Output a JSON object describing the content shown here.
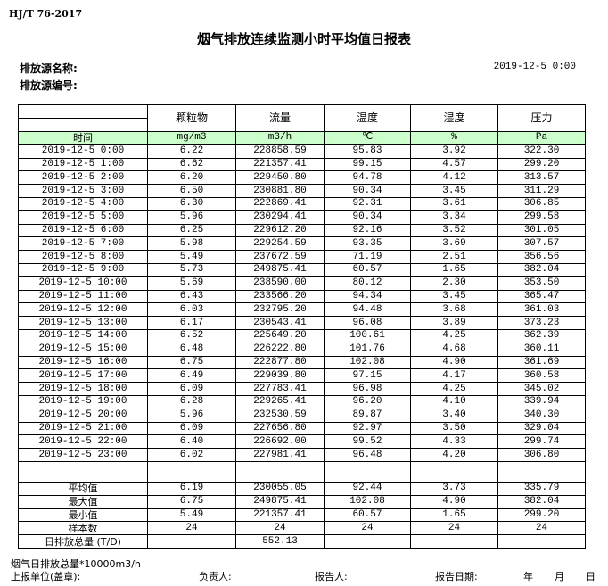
{
  "standard": "HJ/T  76-2017",
  "title": "烟气排放连续监测小时平均值日报表",
  "source_name_label": "排放源名称:",
  "source_id_label": "排放源编号:",
  "report_datetime": "2019-12-5 0:00",
  "columns": [
    "颗粒物",
    "流量",
    "温度",
    "湿度",
    "压力"
  ],
  "time_label": "时间",
  "units": [
    "mg/m3",
    "m3/h",
    "℃",
    "%",
    "Pa"
  ],
  "rows": [
    [
      "2019-12-5 0:00",
      "6.22",
      "228858.59",
      "95.83",
      "3.92",
      "322.30"
    ],
    [
      "2019-12-5 1:00",
      "6.62",
      "221357.41",
      "99.15",
      "4.57",
      "299.20"
    ],
    [
      "2019-12-5 2:00",
      "6.20",
      "229450.80",
      "94.78",
      "4.12",
      "313.57"
    ],
    [
      "2019-12-5 3:00",
      "6.50",
      "230881.80",
      "90.34",
      "3.45",
      "311.29"
    ],
    [
      "2019-12-5 4:00",
      "6.30",
      "222869.41",
      "92.31",
      "3.61",
      "306.85"
    ],
    [
      "2019-12-5 5:00",
      "5.96",
      "230294.41",
      "90.34",
      "3.34",
      "299.58"
    ],
    [
      "2019-12-5 6:00",
      "6.25",
      "229612.20",
      "92.16",
      "3.52",
      "301.05"
    ],
    [
      "2019-12-5 7:00",
      "5.98",
      "229254.59",
      "93.35",
      "3.69",
      "307.57"
    ],
    [
      "2019-12-5 8:00",
      "5.49",
      "237672.59",
      "71.19",
      "2.51",
      "356.56"
    ],
    [
      "2019-12-5 9:00",
      "5.73",
      "249875.41",
      "60.57",
      "1.65",
      "382.04"
    ],
    [
      "2019-12-5 10:00",
      "5.69",
      "238590.00",
      "80.12",
      "2.30",
      "353.50"
    ],
    [
      "2019-12-5 11:00",
      "6.43",
      "233566.20",
      "94.34",
      "3.45",
      "365.47"
    ],
    [
      "2019-12-5 12:00",
      "6.03",
      "232795.20",
      "94.48",
      "3.68",
      "361.03"
    ],
    [
      "2019-12-5 13:00",
      "6.17",
      "230543.41",
      "96.08",
      "3.89",
      "373.23"
    ],
    [
      "2019-12-5 14:00",
      "6.52",
      "225649.20",
      "100.61",
      "4.25",
      "362.39"
    ],
    [
      "2019-12-5 15:00",
      "6.48",
      "226222.80",
      "101.76",
      "4.68",
      "360.11"
    ],
    [
      "2019-12-5 16:00",
      "6.75",
      "222877.80",
      "102.08",
      "4.90",
      "361.69"
    ],
    [
      "2019-12-5 17:00",
      "6.49",
      "229039.80",
      "97.15",
      "4.17",
      "360.58"
    ],
    [
      "2019-12-5 18:00",
      "6.09",
      "227783.41",
      "96.98",
      "4.25",
      "345.02"
    ],
    [
      "2019-12-5 19:00",
      "6.28",
      "229265.41",
      "96.20",
      "4.10",
      "339.94"
    ],
    [
      "2019-12-5 20:00",
      "5.96",
      "232530.59",
      "89.87",
      "3.40",
      "340.30"
    ],
    [
      "2019-12-5 21:00",
      "6.09",
      "227656.80",
      "92.97",
      "3.50",
      "329.04"
    ],
    [
      "2019-12-5 22:00",
      "6.40",
      "226692.00",
      "99.52",
      "4.33",
      "299.74"
    ],
    [
      "2019-12-5 23:00",
      "6.02",
      "227981.41",
      "96.48",
      "4.20",
      "306.80"
    ]
  ],
  "summary": [
    [
      "平均值",
      "6.19",
      "230055.05",
      "92.44",
      "3.73",
      "335.79"
    ],
    [
      "最大值",
      "6.75",
      "249875.41",
      "102.08",
      "4.90",
      "382.04"
    ],
    [
      "最小值",
      "5.49",
      "221357.41",
      "60.57",
      "1.65",
      "299.20"
    ],
    [
      "样本数",
      "24",
      "24",
      "24",
      "24",
      "24"
    ],
    [
      "日排放总量 (T/D)",
      "",
      "552.13",
      "",
      "",
      ""
    ]
  ],
  "footer": {
    "note": "烟气日排放总量*10000m3/h",
    "unit_label": "上报单位(盖章):",
    "responsible_label": "负责人:",
    "reporter_label": "报告人:",
    "date_label": "报告日期:",
    "year": "年",
    "month": "月",
    "day": "日"
  }
}
